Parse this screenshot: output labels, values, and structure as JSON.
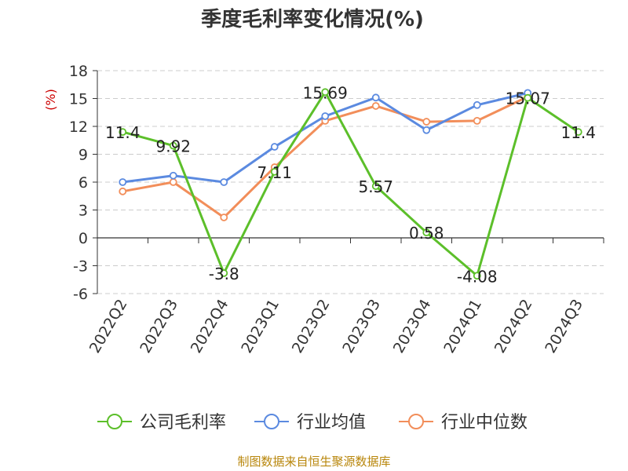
{
  "chart_data": {
    "type": "line",
    "title": "季度毛利率变化情况(%)",
    "ylabel": "(%)",
    "ylim": [
      -6,
      18
    ],
    "yticks": [
      -6,
      -3,
      0,
      3,
      6,
      9,
      12,
      15,
      18
    ],
    "grid": true,
    "legend_position": "bottom",
    "categories": [
      "2022Q2",
      "2022Q3",
      "2022Q4",
      "2023Q1",
      "2023Q2",
      "2023Q3",
      "2023Q4",
      "2024Q1",
      "2024Q2",
      "2024Q3"
    ],
    "series": [
      {
        "name": "公司毛利率",
        "color": "#5cbf2a",
        "values": [
          11.4,
          9.92,
          -3.8,
          7.11,
          15.69,
          5.57,
          0.58,
          -4.08,
          15.07,
          11.4
        ],
        "labels": [
          "11.4",
          "9.92",
          "-3.8",
          "7.11",
          "15.69",
          "5.57",
          "0.58",
          "-4.08",
          "15.07",
          "11.4"
        ]
      },
      {
        "name": "行业均值",
        "color": "#5b8ae0",
        "values": [
          6.0,
          6.7,
          6.0,
          9.8,
          13.1,
          15.1,
          11.6,
          14.3,
          15.6,
          null
        ]
      },
      {
        "name": "行业中位数",
        "color": "#f28e5a",
        "values": [
          5.0,
          6.0,
          2.2,
          7.6,
          12.6,
          14.2,
          12.5,
          12.6,
          15.2,
          null
        ]
      }
    ],
    "source": "制图数据来自恒生聚源数据库"
  }
}
